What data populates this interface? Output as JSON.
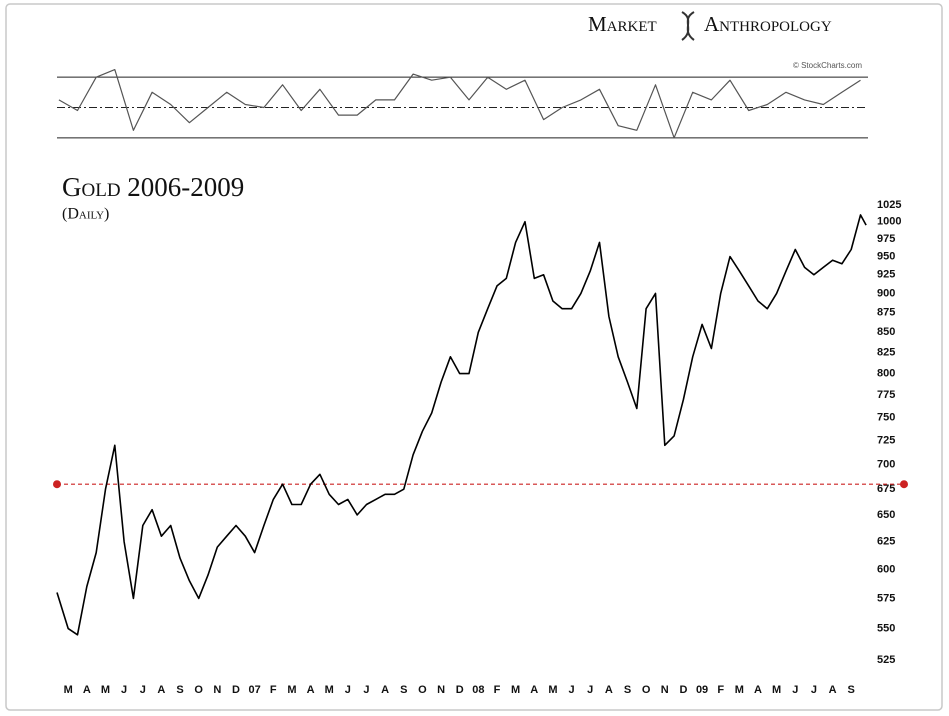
{
  "header": {
    "brand_left": "Market",
    "brand_right": "Anthropology"
  },
  "chart_data": [
    {
      "type": "line",
      "title": "Gold 2006-2009",
      "subtitle": "(Daily)",
      "log_scale": true,
      "color": "#000000",
      "xlim": [
        -0.6,
        42.9
      ],
      "ylim": [
        510,
        1040
      ],
      "yticks": [
        525,
        550,
        575,
        600,
        625,
        650,
        675,
        700,
        725,
        750,
        775,
        800,
        825,
        850,
        875,
        900,
        925,
        950,
        975,
        1000,
        1025
      ],
      "xticks": [
        {
          "value": 0,
          "label": "M"
        },
        {
          "value": 1,
          "label": "A"
        },
        {
          "value": 2,
          "label": "M"
        },
        {
          "value": 3,
          "label": "J"
        },
        {
          "value": 4,
          "label": "J"
        },
        {
          "value": 5,
          "label": "A"
        },
        {
          "value": 6,
          "label": "S"
        },
        {
          "value": 7,
          "label": "O"
        },
        {
          "value": 8,
          "label": "N"
        },
        {
          "value": 9,
          "label": "D"
        },
        {
          "value": 10,
          "label": "07"
        },
        {
          "value": 11,
          "label": "F"
        },
        {
          "value": 12,
          "label": "M"
        },
        {
          "value": 13,
          "label": "A"
        },
        {
          "value": 14,
          "label": "M"
        },
        {
          "value": 15,
          "label": "J"
        },
        {
          "value": 16,
          "label": "J"
        },
        {
          "value": 17,
          "label": "A"
        },
        {
          "value": 18,
          "label": "S"
        },
        {
          "value": 19,
          "label": "O"
        },
        {
          "value": 20,
          "label": "N"
        },
        {
          "value": 21,
          "label": "D"
        },
        {
          "value": 22,
          "label": "08"
        },
        {
          "value": 23,
          "label": "F"
        },
        {
          "value": 24,
          "label": "M"
        },
        {
          "value": 25,
          "label": "A"
        },
        {
          "value": 26,
          "label": "M"
        },
        {
          "value": 27,
          "label": "J"
        },
        {
          "value": 28,
          "label": "J"
        },
        {
          "value": 29,
          "label": "A"
        },
        {
          "value": 30,
          "label": "S"
        },
        {
          "value": 31,
          "label": "O"
        },
        {
          "value": 32,
          "label": "N"
        },
        {
          "value": 33,
          "label": "D"
        },
        {
          "value": 34,
          "label": "09"
        },
        {
          "value": 35,
          "label": "F"
        },
        {
          "value": 36,
          "label": "M"
        },
        {
          "value": 37,
          "label": "A"
        },
        {
          "value": 38,
          "label": "M"
        },
        {
          "value": 39,
          "label": "J"
        },
        {
          "value": 40,
          "label": "J"
        },
        {
          "value": 41,
          "label": "A"
        },
        {
          "value": 42,
          "label": "S"
        }
      ],
      "x": [
        -0.6,
        0,
        0.5,
        1,
        1.5,
        2,
        2.5,
        3,
        3.5,
        4,
        4.5,
        5,
        5.5,
        6,
        6.5,
        7,
        7.5,
        8,
        8.5,
        9,
        9.5,
        10,
        10.5,
        11,
        11.5,
        12,
        12.5,
        13,
        13.5,
        14,
        14.5,
        15,
        15.5,
        16,
        16.5,
        17,
        17.5,
        18,
        18.5,
        19,
        19.5,
        20,
        20.5,
        21,
        21.5,
        22,
        22.5,
        23,
        23.5,
        24,
        24.5,
        25,
        25.5,
        26,
        26.5,
        27,
        27.5,
        28,
        28.5,
        29,
        29.5,
        30,
        30.5,
        31,
        31.5,
        32,
        32.5,
        33,
        33.5,
        34,
        34.5,
        35,
        35.5,
        36,
        36.5,
        37,
        37.5,
        38,
        38.5,
        39,
        39.5,
        40,
        40.5,
        41,
        41.5,
        42,
        42.5,
        42.8
      ],
      "values": [
        580,
        550,
        545,
        585,
        615,
        675,
        720,
        625,
        575,
        640,
        655,
        630,
        640,
        610,
        590,
        575,
        595,
        620,
        630,
        640,
        630,
        615,
        640,
        665,
        680,
        660,
        660,
        680,
        690,
        670,
        660,
        665,
        650,
        660,
        665,
        670,
        670,
        675,
        710,
        735,
        755,
        790,
        820,
        800,
        800,
        850,
        880,
        910,
        920,
        970,
        1000,
        920,
        925,
        890,
        880,
        880,
        900,
        930,
        970,
        870,
        820,
        790,
        760,
        880,
        900,
        720,
        730,
        770,
        820,
        860,
        830,
        900,
        950,
        930,
        910,
        890,
        880,
        900,
        930,
        960,
        935,
        925,
        935,
        945,
        940,
        960,
        1010,
        995
      ],
      "reference_line": {
        "value": 680,
        "color": "#cc2222"
      }
    },
    {
      "type": "line",
      "credit": "© StockCharts.com",
      "color": "#555555",
      "xlim": [
        -0.6,
        42.9
      ],
      "ylim": [
        20,
        80
      ],
      "hlines": [
        {
          "value": 70,
          "style": "solid"
        },
        {
          "value": 50,
          "style": "dashdot"
        },
        {
          "value": 30,
          "style": "solid"
        }
      ],
      "x": [
        -0.5,
        0.5,
        1.5,
        2.5,
        3.5,
        4.5,
        5.5,
        6.5,
        7.5,
        8.5,
        9.5,
        10.5,
        11.5,
        12.5,
        13.5,
        14.5,
        15.5,
        16.5,
        17.5,
        18.5,
        19.5,
        20.5,
        21.5,
        22.5,
        23.5,
        24.5,
        25.5,
        26.5,
        27.5,
        28.5,
        29.5,
        30.5,
        31.5,
        32.5,
        33.5,
        34.5,
        35.5,
        36.5,
        37.5,
        38.5,
        39.5,
        40.5,
        41.5,
        42.5
      ],
      "values": [
        55,
        48,
        70,
        75,
        35,
        60,
        52,
        40,
        50,
        60,
        52,
        50,
        65,
        48,
        62,
        45,
        45,
        55,
        55,
        72,
        68,
        70,
        55,
        70,
        62,
        68,
        42,
        50,
        55,
        62,
        38,
        35,
        65,
        30,
        60,
        55,
        68,
        48,
        52,
        60,
        55,
        52,
        60,
        68
      ]
    }
  ]
}
